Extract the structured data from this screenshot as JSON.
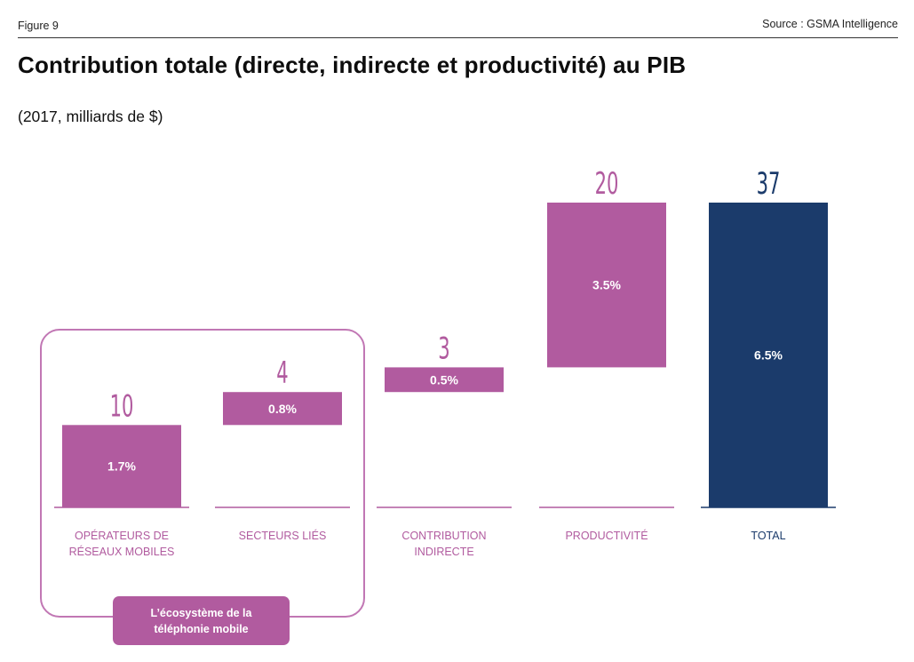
{
  "header": {
    "figure": "Figure 9",
    "source": "Source : GSMA Intelligence"
  },
  "chart_data": {
    "type": "bar",
    "title": "Contribution totale (directe, indirecte et productivité) au PIB",
    "subtitle": "(2017, milliards de $)",
    "categories": [
      "Opérateurs de\nréseaux mobiles",
      "Secteurs liés",
      "Contribution\nindirecte",
      "Productivité",
      "Total"
    ],
    "values": [
      10,
      4,
      3,
      20,
      37
    ],
    "value_labels": [
      "10",
      "4",
      "3",
      "20",
      "37"
    ],
    "percent_labels": [
      "1.7%",
      "0.8%",
      "0.5%",
      "3.5%",
      "6.5%"
    ],
    "bar_bases": [
      0,
      10,
      14,
      17,
      0
    ],
    "ylim": [
      0,
      37
    ],
    "grid": false,
    "colors": {
      "component": "#b15b9f",
      "total": "#1b3b6b"
    },
    "group_annotation": "L’écosystème de la\ntéléphonie mobile"
  }
}
